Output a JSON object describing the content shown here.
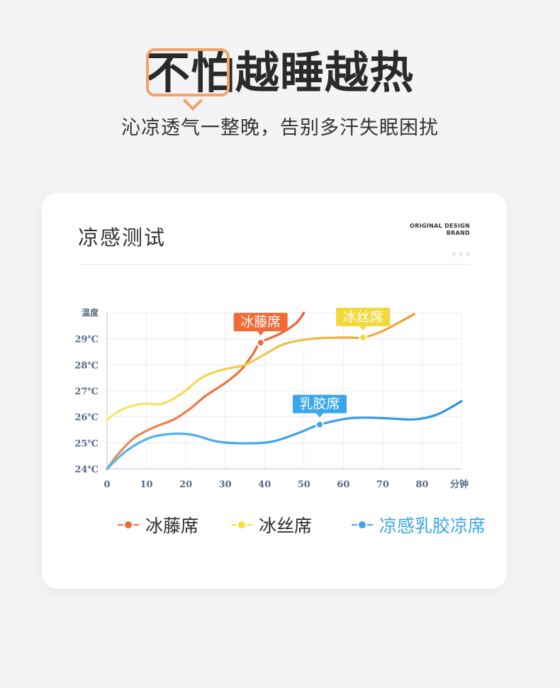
{
  "header": {
    "headline": "不怕越睡越热",
    "subtitle": "沁凉透气一整晚，告别多汗失眠困扰"
  },
  "card": {
    "title": "凉感测试",
    "brand_line1": "ORIGINAL DESIGN",
    "brand_line2": "BRAND"
  },
  "colors": {
    "accent_orange": "#f2a36b",
    "vine": "#ef6a35",
    "silk": "#f3e142",
    "silk_end": "#f0a330",
    "latex": "#3aa7ea"
  },
  "chart_data": {
    "type": "line",
    "ylabel": "温度",
    "xlabel": "分钟",
    "x_ticks": [
      "0",
      "10",
      "20",
      "30",
      "40",
      "50",
      "60",
      "70",
      "80"
    ],
    "y_ticks": [
      "24℃",
      "25℃",
      "26℃",
      "27℃",
      "28℃",
      "29℃"
    ],
    "xlim": [
      0,
      90
    ],
    "ylim": [
      24,
      30
    ],
    "grid": true,
    "legend_position": "bottom",
    "series": [
      {
        "name": "冰藤席",
        "color": "#ef6a35",
        "callout": "冰藤席",
        "callout_point": [
          39,
          28.85
        ],
        "points": [
          [
            0,
            24
          ],
          [
            3,
            24.6
          ],
          [
            7,
            25.2
          ],
          [
            12,
            25.6
          ],
          [
            17,
            25.9
          ],
          [
            21,
            26.3
          ],
          [
            25,
            26.8
          ],
          [
            30,
            27.3
          ],
          [
            34,
            27.8
          ],
          [
            37,
            28.4
          ],
          [
            39,
            28.85
          ],
          [
            44,
            29.2
          ],
          [
            48,
            29.6
          ],
          [
            50,
            30
          ]
        ]
      },
      {
        "name": "冰丝席",
        "color": "#f3e142",
        "callout": "冰丝席",
        "callout_point": [
          65,
          29.05
        ],
        "points": [
          [
            0,
            25.9
          ],
          [
            4,
            26.3
          ],
          [
            9,
            26.5
          ],
          [
            14,
            26.5
          ],
          [
            19,
            26.9
          ],
          [
            24,
            27.5
          ],
          [
            29,
            27.8
          ],
          [
            35,
            28.0
          ],
          [
            40,
            28.4
          ],
          [
            45,
            28.8
          ],
          [
            52,
            29.0
          ],
          [
            60,
            29.05
          ],
          [
            65,
            29.05
          ],
          [
            70,
            29.3
          ],
          [
            75,
            29.7
          ],
          [
            78,
            29.95
          ]
        ]
      },
      {
        "name": "凉感乳胶凉席",
        "color": "#3aa7ea",
        "callout": "乳胶席",
        "callout_point": [
          54,
          25.7
        ],
        "points": [
          [
            0,
            24
          ],
          [
            5,
            24.7
          ],
          [
            11,
            25.2
          ],
          [
            17,
            25.35
          ],
          [
            22,
            25.3
          ],
          [
            28,
            25.05
          ],
          [
            35,
            24.98
          ],
          [
            42,
            25.05
          ],
          [
            49,
            25.4
          ],
          [
            54,
            25.7
          ],
          [
            62,
            25.95
          ],
          [
            70,
            25.95
          ],
          [
            78,
            25.9
          ],
          [
            84,
            26.1
          ],
          [
            90,
            26.6
          ]
        ]
      }
    ]
  }
}
